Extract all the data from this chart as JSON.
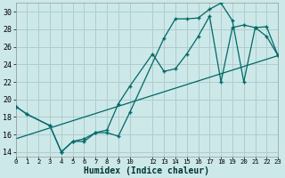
{
  "xlabel": "Humidex (Indice chaleur)",
  "bg_color": "#cce8e8",
  "grid_color": "#b0cccc",
  "line_color": "#006868",
  "xlim": [
    0,
    23
  ],
  "ylim": [
    13.5,
    31.0
  ],
  "xticks": [
    0,
    1,
    2,
    3,
    4,
    5,
    6,
    7,
    8,
    9,
    10,
    12,
    13,
    14,
    15,
    16,
    17,
    18,
    19,
    20,
    21,
    22,
    23
  ],
  "yticks": [
    14,
    16,
    18,
    20,
    22,
    24,
    26,
    28,
    30
  ],
  "series1_x": [
    0,
    1,
    3,
    4,
    5,
    6,
    7,
    8,
    9,
    10,
    13,
    14,
    15,
    16,
    17,
    18,
    19,
    20,
    21,
    22,
    23
  ],
  "series1_y": [
    19.2,
    18.3,
    17.0,
    14.0,
    15.2,
    15.2,
    16.2,
    16.2,
    15.8,
    18.5,
    27.0,
    29.2,
    29.2,
    29.3,
    30.3,
    31.0,
    29.0,
    22.0,
    28.2,
    28.3,
    25.0
  ],
  "series2_x": [
    0,
    1,
    3,
    4,
    5,
    6,
    7,
    8,
    9,
    10,
    12,
    13,
    14,
    15,
    16,
    17,
    18,
    19,
    20,
    21,
    22,
    23
  ],
  "series2_y": [
    19.2,
    18.3,
    17.0,
    14.0,
    15.2,
    15.5,
    16.2,
    16.5,
    19.5,
    21.5,
    25.2,
    23.2,
    23.5,
    25.2,
    27.2,
    29.5,
    22.0,
    28.2,
    28.5,
    28.2,
    27.2,
    25.0
  ],
  "series3_x": [
    0,
    23
  ],
  "series3_y": [
    15.5,
    25.0
  ]
}
